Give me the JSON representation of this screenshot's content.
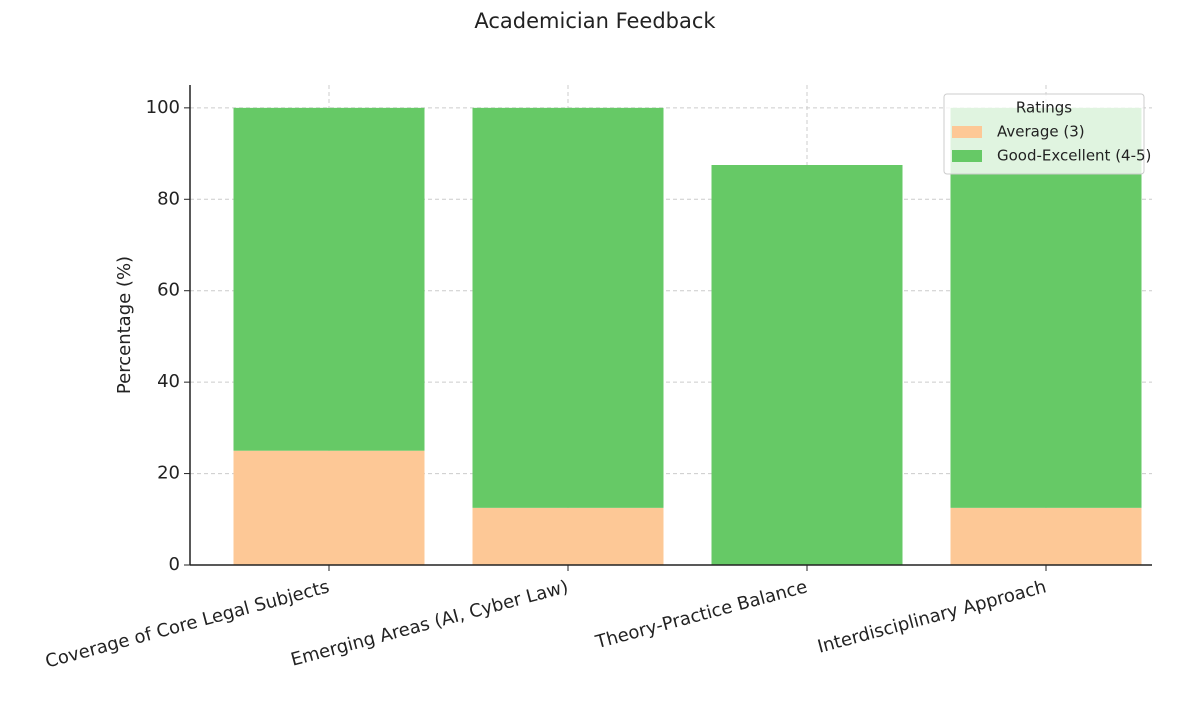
{
  "chart_data": {
    "type": "stacked_bar",
    "title": "Academician Feedback",
    "ylabel": "Percentage (%)",
    "categories": [
      "Coverage of Core Legal Subjects",
      "Emerging Areas (AI, Cyber Law)",
      "Theory-Practice Balance",
      "Interdisciplinary Approach"
    ],
    "series": [
      {
        "name": "Average (3)",
        "color": "#fdc896",
        "values": [
          25,
          12.5,
          0,
          12.5
        ]
      },
      {
        "name": "Good-Excellent (4-5)",
        "color": "#66c966",
        "values": [
          75,
          87.5,
          87.5,
          87.5
        ]
      }
    ],
    "legend_title": "Ratings",
    "legend": "upper right",
    "ylim": [
      0,
      105
    ],
    "yticks": [
      0,
      20,
      40,
      60,
      80,
      100
    ],
    "grid": true
  }
}
